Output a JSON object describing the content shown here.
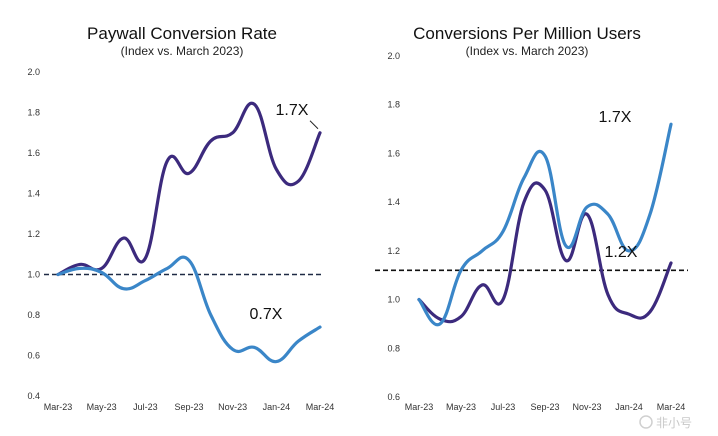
{
  "chart_data": [
    {
      "type": "line",
      "title": "Paywall Conversion Rate",
      "subtitle": "(Index vs. March 2023)",
      "xlabel": "",
      "ylabel": "",
      "x_tick_labels": [
        "Mar-23",
        "May-23",
        "Jul-23",
        "Sep-23",
        "Nov-23",
        "Jan-24",
        "Mar-24"
      ],
      "y_tick_labels": [
        "2.0",
        "1.8",
        "1.6",
        "1.4",
        "1.2",
        "1.0",
        "0.8",
        "0.6",
        "0.4"
      ],
      "ylim": [
        0.4,
        2.0
      ],
      "grid": false,
      "reference_line": {
        "value": 1.0,
        "style": "dashed",
        "color": "#1f2a44"
      },
      "categories": [
        "Mar-23",
        "Apr-23",
        "May-23",
        "Jun-23",
        "Jul-23",
        "Aug-23",
        "Sep-23",
        "Oct-23",
        "Nov-23",
        "Dec-23",
        "Jan-24",
        "Feb-24",
        "Mar-24"
      ],
      "series": [
        {
          "color": "#3c2a7d",
          "values": [
            1.0,
            1.05,
            1.03,
            1.18,
            1.08,
            1.56,
            1.5,
            1.66,
            1.7,
            1.84,
            1.52,
            1.46,
            1.7
          ]
        },
        {
          "color": "#3a86c8",
          "values": [
            1.0,
            1.03,
            1.01,
            0.93,
            0.97,
            1.03,
            1.07,
            0.8,
            0.63,
            0.64,
            0.57,
            0.67,
            0.74
          ]
        }
      ],
      "annotations": [
        {
          "text": "1.7X",
          "x": "Mar-24",
          "y": 1.7
        },
        {
          "text": "0.7X",
          "x": "Mar-24",
          "y": 0.74
        }
      ]
    },
    {
      "type": "line",
      "title": "Conversions Per Million Users",
      "subtitle": "(Index vs. March 2023)",
      "xlabel": "",
      "ylabel": "",
      "x_tick_labels": [
        "Mar-23",
        "May-23",
        "Jul-23",
        "Sep-23",
        "Nov-23",
        "Jan-24",
        "Mar-24"
      ],
      "y_tick_labels": [
        "2.0",
        "1.8",
        "1.6",
        "1.4",
        "1.2",
        "1.0",
        "0.8",
        "0.6"
      ],
      "ylim": [
        0.6,
        2.0
      ],
      "grid": false,
      "reference_line": {
        "value": 1.12,
        "style": "dashed",
        "color": "#111111"
      },
      "categories": [
        "Mar-23",
        "Apr-23",
        "May-23",
        "Jun-23",
        "Jul-23",
        "Aug-23",
        "Sep-23",
        "Oct-23",
        "Nov-23",
        "Dec-23",
        "Jan-24",
        "Feb-24",
        "Mar-24"
      ],
      "series": [
        {
          "color": "#3c2a7d",
          "values": [
            1.0,
            0.92,
            0.93,
            1.06,
            1.0,
            1.4,
            1.45,
            1.16,
            1.35,
            1.02,
            0.94,
            0.95,
            1.15
          ]
        },
        {
          "color": "#3a86c8",
          "values": [
            1.0,
            0.9,
            1.12,
            1.2,
            1.28,
            1.5,
            1.59,
            1.22,
            1.38,
            1.35,
            1.2,
            1.35,
            1.72
          ]
        }
      ],
      "annotations": [
        {
          "text": "1.7X",
          "x": "Mar-24",
          "y": 1.72
        },
        {
          "text": "1.2X",
          "x": "Mar-24",
          "y": 1.15
        }
      ]
    }
  ],
  "watermark": {
    "text": "非小号",
    "icon": "logo-icon"
  }
}
